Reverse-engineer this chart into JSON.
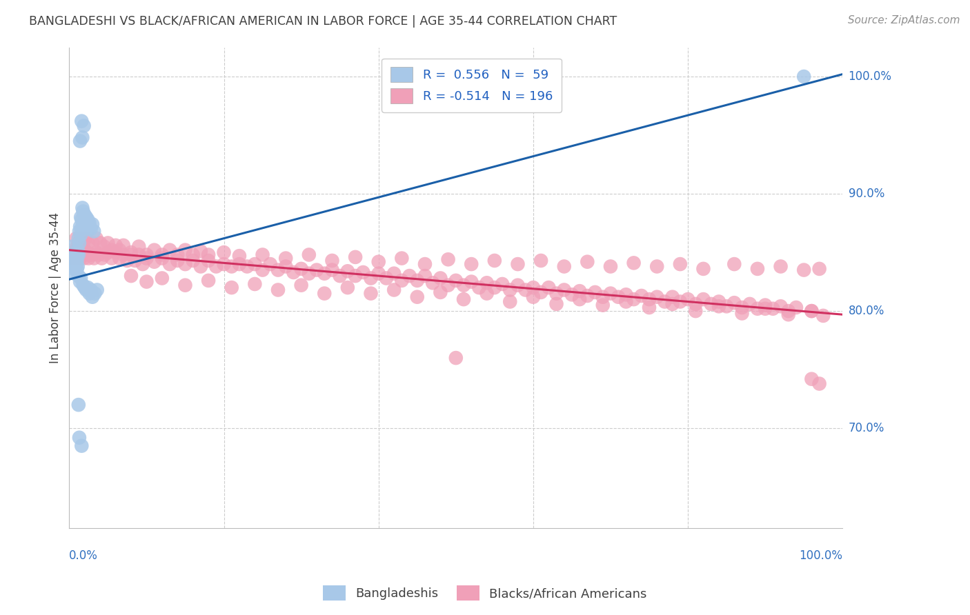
{
  "title": "BANGLADESHI VS BLACK/AFRICAN AMERICAN IN LABOR FORCE | AGE 35-44 CORRELATION CHART",
  "source": "Source: ZipAtlas.com",
  "ylabel": "In Labor Force | Age 35-44",
  "ytick_labels": [
    "70.0%",
    "80.0%",
    "90.0%",
    "100.0%"
  ],
  "ytick_values": [
    0.7,
    0.8,
    0.9,
    1.0
  ],
  "xlim": [
    0.0,
    1.0
  ],
  "ylim": [
    0.615,
    1.025
  ],
  "blue_R": 0.556,
  "blue_N": 59,
  "pink_R": -0.514,
  "pink_N": 196,
  "blue_color": "#a8c8e8",
  "blue_line_color": "#1a5fa8",
  "pink_color": "#f0a0b8",
  "pink_line_color": "#d03060",
  "legend_R_color": "#2060c0",
  "background_color": "#ffffff",
  "grid_color": "#cccccc",
  "title_color": "#404040",
  "axis_label_color": "#3070c0",
  "blue_line_x": [
    0.0,
    1.0
  ],
  "blue_line_y_start": 0.827,
  "blue_line_y_end": 1.002,
  "pink_line_x": [
    0.0,
    1.0
  ],
  "pink_line_y_start": 0.852,
  "pink_line_y_end": 0.797,
  "blue_points": [
    [
      0.003,
      0.843
    ],
    [
      0.004,
      0.84
    ],
    [
      0.004,
      0.855
    ],
    [
      0.005,
      0.847
    ],
    [
      0.005,
      0.838
    ],
    [
      0.006,
      0.843
    ],
    [
      0.006,
      0.836
    ],
    [
      0.007,
      0.848
    ],
    [
      0.007,
      0.832
    ],
    [
      0.008,
      0.843
    ],
    [
      0.008,
      0.838
    ],
    [
      0.009,
      0.845
    ],
    [
      0.009,
      0.84
    ],
    [
      0.01,
      0.848
    ],
    [
      0.01,
      0.836
    ],
    [
      0.01,
      0.843
    ],
    [
      0.011,
      0.852
    ],
    [
      0.011,
      0.838
    ],
    [
      0.012,
      0.862
    ],
    [
      0.012,
      0.848
    ],
    [
      0.013,
      0.868
    ],
    [
      0.013,
      0.858
    ],
    [
      0.014,
      0.872
    ],
    [
      0.015,
      0.88
    ],
    [
      0.015,
      0.865
    ],
    [
      0.016,
      0.878
    ],
    [
      0.017,
      0.888
    ],
    [
      0.017,
      0.872
    ],
    [
      0.018,
      0.885
    ],
    [
      0.019,
      0.875
    ],
    [
      0.02,
      0.882
    ],
    [
      0.021,
      0.876
    ],
    [
      0.022,
      0.88
    ],
    [
      0.023,
      0.872
    ],
    [
      0.024,
      0.878
    ],
    [
      0.025,
      0.87
    ],
    [
      0.026,
      0.875
    ],
    [
      0.028,
      0.87
    ],
    [
      0.03,
      0.874
    ],
    [
      0.032,
      0.868
    ],
    [
      0.014,
      0.945
    ],
    [
      0.016,
      0.962
    ],
    [
      0.017,
      0.948
    ],
    [
      0.019,
      0.958
    ],
    [
      0.012,
      0.83
    ],
    [
      0.014,
      0.825
    ],
    [
      0.015,
      0.828
    ],
    [
      0.018,
      0.822
    ],
    [
      0.02,
      0.82
    ],
    [
      0.022,
      0.818
    ],
    [
      0.024,
      0.82
    ],
    [
      0.026,
      0.815
    ],
    [
      0.028,
      0.818
    ],
    [
      0.03,
      0.812
    ],
    [
      0.033,
      0.815
    ],
    [
      0.036,
      0.818
    ],
    [
      0.012,
      0.72
    ],
    [
      0.016,
      0.685
    ],
    [
      0.013,
      0.692
    ],
    [
      0.95,
      1.0
    ]
  ],
  "pink_points": [
    [
      0.004,
      0.848
    ],
    [
      0.005,
      0.852
    ],
    [
      0.006,
      0.845
    ],
    [
      0.007,
      0.85
    ],
    [
      0.008,
      0.848
    ],
    [
      0.009,
      0.852
    ],
    [
      0.01,
      0.845
    ],
    [
      0.011,
      0.85
    ],
    [
      0.012,
      0.848
    ],
    [
      0.013,
      0.852
    ],
    [
      0.014,
      0.845
    ],
    [
      0.015,
      0.85
    ],
    [
      0.016,
      0.848
    ],
    [
      0.018,
      0.85
    ],
    [
      0.019,
      0.845
    ],
    [
      0.02,
      0.852
    ],
    [
      0.022,
      0.848
    ],
    [
      0.023,
      0.85
    ],
    [
      0.025,
      0.845
    ],
    [
      0.027,
      0.848
    ],
    [
      0.03,
      0.848
    ],
    [
      0.032,
      0.845
    ],
    [
      0.035,
      0.85
    ],
    [
      0.038,
      0.848
    ],
    [
      0.042,
      0.845
    ],
    [
      0.046,
      0.848
    ],
    [
      0.05,
      0.85
    ],
    [
      0.055,
      0.845
    ],
    [
      0.06,
      0.85
    ],
    [
      0.065,
      0.845
    ],
    [
      0.07,
      0.848
    ],
    [
      0.075,
      0.843
    ],
    [
      0.08,
      0.848
    ],
    [
      0.085,
      0.843
    ],
    [
      0.09,
      0.848
    ],
    [
      0.095,
      0.84
    ],
    [
      0.1,
      0.845
    ],
    [
      0.11,
      0.842
    ],
    [
      0.12,
      0.845
    ],
    [
      0.13,
      0.84
    ],
    [
      0.14,
      0.843
    ],
    [
      0.15,
      0.84
    ],
    [
      0.16,
      0.843
    ],
    [
      0.17,
      0.838
    ],
    [
      0.18,
      0.843
    ],
    [
      0.19,
      0.838
    ],
    [
      0.2,
      0.84
    ],
    [
      0.21,
      0.838
    ],
    [
      0.22,
      0.84
    ],
    [
      0.23,
      0.838
    ],
    [
      0.24,
      0.84
    ],
    [
      0.25,
      0.835
    ],
    [
      0.26,
      0.84
    ],
    [
      0.27,
      0.835
    ],
    [
      0.28,
      0.838
    ],
    [
      0.29,
      0.833
    ],
    [
      0.3,
      0.836
    ],
    [
      0.31,
      0.832
    ],
    [
      0.32,
      0.835
    ],
    [
      0.33,
      0.832
    ],
    [
      0.34,
      0.835
    ],
    [
      0.35,
      0.83
    ],
    [
      0.36,
      0.834
    ],
    [
      0.37,
      0.83
    ],
    [
      0.38,
      0.833
    ],
    [
      0.39,
      0.828
    ],
    [
      0.4,
      0.832
    ],
    [
      0.41,
      0.828
    ],
    [
      0.42,
      0.832
    ],
    [
      0.43,
      0.826
    ],
    [
      0.44,
      0.83
    ],
    [
      0.45,
      0.826
    ],
    [
      0.46,
      0.83
    ],
    [
      0.47,
      0.824
    ],
    [
      0.48,
      0.828
    ],
    [
      0.49,
      0.822
    ],
    [
      0.5,
      0.826
    ],
    [
      0.51,
      0.822
    ],
    [
      0.52,
      0.825
    ],
    [
      0.53,
      0.82
    ],
    [
      0.54,
      0.824
    ],
    [
      0.55,
      0.82
    ],
    [
      0.56,
      0.823
    ],
    [
      0.57,
      0.818
    ],
    [
      0.58,
      0.822
    ],
    [
      0.59,
      0.818
    ],
    [
      0.6,
      0.82
    ],
    [
      0.61,
      0.816
    ],
    [
      0.62,
      0.82
    ],
    [
      0.63,
      0.815
    ],
    [
      0.64,
      0.818
    ],
    [
      0.65,
      0.814
    ],
    [
      0.66,
      0.817
    ],
    [
      0.67,
      0.813
    ],
    [
      0.68,
      0.816
    ],
    [
      0.69,
      0.812
    ],
    [
      0.7,
      0.815
    ],
    [
      0.71,
      0.812
    ],
    [
      0.72,
      0.814
    ],
    [
      0.73,
      0.81
    ],
    [
      0.74,
      0.813
    ],
    [
      0.75,
      0.81
    ],
    [
      0.76,
      0.812
    ],
    [
      0.77,
      0.808
    ],
    [
      0.78,
      0.812
    ],
    [
      0.79,
      0.808
    ],
    [
      0.8,
      0.81
    ],
    [
      0.81,
      0.806
    ],
    [
      0.82,
      0.81
    ],
    [
      0.83,
      0.806
    ],
    [
      0.84,
      0.808
    ],
    [
      0.85,
      0.804
    ],
    [
      0.86,
      0.807
    ],
    [
      0.87,
      0.803
    ],
    [
      0.88,
      0.806
    ],
    [
      0.89,
      0.802
    ],
    [
      0.9,
      0.805
    ],
    [
      0.91,
      0.802
    ],
    [
      0.92,
      0.804
    ],
    [
      0.93,
      0.8
    ],
    [
      0.94,
      0.803
    ],
    [
      0.96,
      0.8
    ],
    [
      0.009,
      0.862
    ],
    [
      0.012,
      0.858
    ],
    [
      0.015,
      0.862
    ],
    [
      0.018,
      0.858
    ],
    [
      0.021,
      0.862
    ],
    [
      0.024,
      0.858
    ],
    [
      0.03,
      0.858
    ],
    [
      0.035,
      0.862
    ],
    [
      0.04,
      0.858
    ],
    [
      0.045,
      0.855
    ],
    [
      0.05,
      0.858
    ],
    [
      0.055,
      0.852
    ],
    [
      0.06,
      0.856
    ],
    [
      0.065,
      0.852
    ],
    [
      0.07,
      0.856
    ],
    [
      0.08,
      0.85
    ],
    [
      0.09,
      0.855
    ],
    [
      0.1,
      0.848
    ],
    [
      0.11,
      0.852
    ],
    [
      0.12,
      0.848
    ],
    [
      0.13,
      0.852
    ],
    [
      0.14,
      0.848
    ],
    [
      0.15,
      0.852
    ],
    [
      0.16,
      0.848
    ],
    [
      0.17,
      0.851
    ],
    [
      0.18,
      0.848
    ],
    [
      0.2,
      0.85
    ],
    [
      0.22,
      0.847
    ],
    [
      0.25,
      0.848
    ],
    [
      0.28,
      0.845
    ],
    [
      0.31,
      0.848
    ],
    [
      0.34,
      0.843
    ],
    [
      0.37,
      0.846
    ],
    [
      0.4,
      0.842
    ],
    [
      0.43,
      0.845
    ],
    [
      0.46,
      0.84
    ],
    [
      0.49,
      0.844
    ],
    [
      0.52,
      0.84
    ],
    [
      0.55,
      0.843
    ],
    [
      0.58,
      0.84
    ],
    [
      0.61,
      0.843
    ],
    [
      0.64,
      0.838
    ],
    [
      0.67,
      0.842
    ],
    [
      0.7,
      0.838
    ],
    [
      0.73,
      0.841
    ],
    [
      0.76,
      0.838
    ],
    [
      0.79,
      0.84
    ],
    [
      0.82,
      0.836
    ],
    [
      0.86,
      0.84
    ],
    [
      0.89,
      0.836
    ],
    [
      0.92,
      0.838
    ],
    [
      0.95,
      0.835
    ],
    [
      0.97,
      0.836
    ],
    [
      0.08,
      0.83
    ],
    [
      0.1,
      0.825
    ],
    [
      0.12,
      0.828
    ],
    [
      0.15,
      0.822
    ],
    [
      0.18,
      0.826
    ],
    [
      0.21,
      0.82
    ],
    [
      0.24,
      0.823
    ],
    [
      0.27,
      0.818
    ],
    [
      0.3,
      0.822
    ],
    [
      0.33,
      0.815
    ],
    [
      0.36,
      0.82
    ],
    [
      0.39,
      0.815
    ],
    [
      0.42,
      0.818
    ],
    [
      0.45,
      0.812
    ],
    [
      0.48,
      0.816
    ],
    [
      0.51,
      0.81
    ],
    [
      0.54,
      0.815
    ],
    [
      0.57,
      0.808
    ],
    [
      0.6,
      0.812
    ],
    [
      0.63,
      0.806
    ],
    [
      0.66,
      0.81
    ],
    [
      0.69,
      0.805
    ],
    [
      0.72,
      0.808
    ],
    [
      0.75,
      0.803
    ],
    [
      0.78,
      0.806
    ],
    [
      0.81,
      0.8
    ],
    [
      0.84,
      0.804
    ],
    [
      0.87,
      0.798
    ],
    [
      0.9,
      0.802
    ],
    [
      0.93,
      0.797
    ],
    [
      0.96,
      0.8
    ],
    [
      0.975,
      0.796
    ],
    [
      0.5,
      0.76
    ],
    [
      0.96,
      0.742
    ],
    [
      0.97,
      0.738
    ]
  ]
}
